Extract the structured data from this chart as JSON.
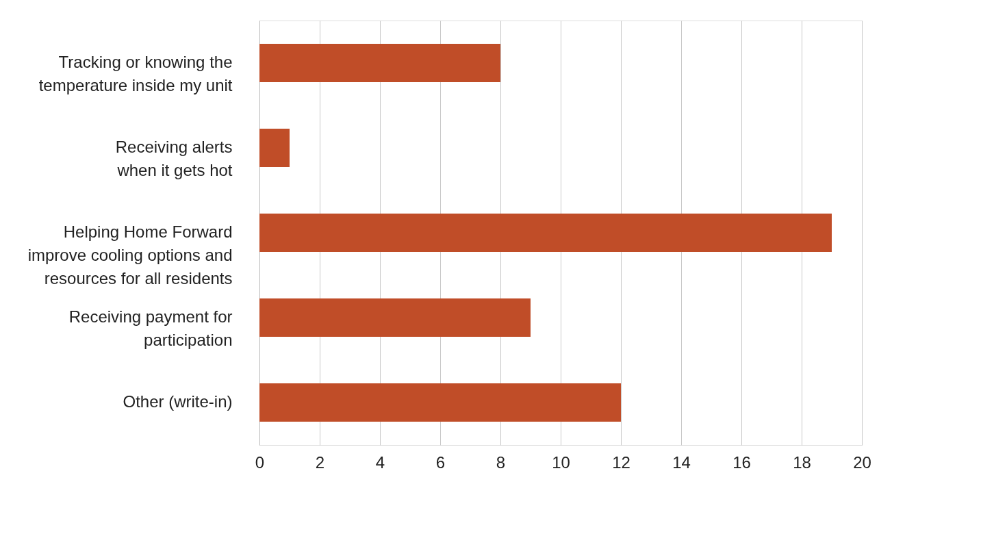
{
  "chart_data": {
    "type": "bar",
    "orientation": "horizontal",
    "categories": [
      "Tracking or knowing the\ntemperature inside my unit",
      "Receiving alerts\nwhen it gets hot",
      "Helping Home Forward\nimprove cooling options and\nresources for all residents",
      "Receiving payment for\nparticipation",
      "Other (write-in)"
    ],
    "values": [
      8,
      1,
      19,
      9,
      12
    ],
    "color": "#c04d28",
    "xlim": [
      0,
      20
    ],
    "xticks": [
      0,
      2,
      4,
      6,
      8,
      10,
      12,
      14,
      16,
      18,
      20
    ],
    "grid": "x"
  }
}
